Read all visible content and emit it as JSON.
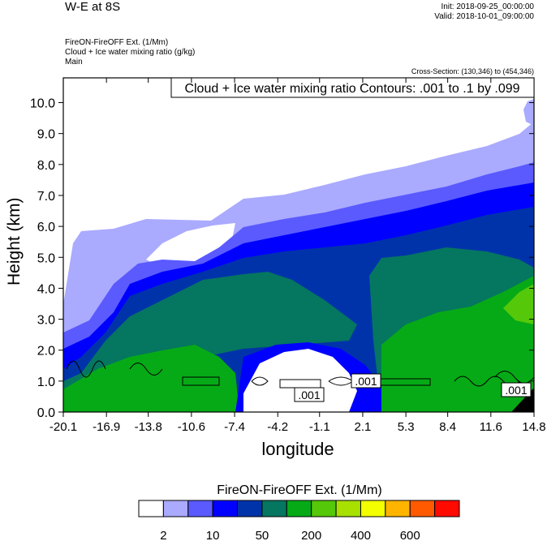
{
  "header": {
    "title": "W-E at 8S",
    "init": "Init: 2018-09-25_00:00:00",
    "valid": "Valid: 2018-10-01_09:00:00",
    "subtitles": [
      "FireON-FireOFF Ext.   (1/Mm)",
      "Cloud + Ice water mixing ratio   (g/kg)",
      "Main"
    ],
    "cross_section": "Cross-Section: (130,346) to (454,346)"
  },
  "chart_data": {
    "type": "contour",
    "xlabel": "longitude",
    "ylabel": "Height (km)",
    "xlim": [
      -20.1,
      14.8
    ],
    "ylim": [
      0,
      10.8
    ],
    "xticks": [
      "-20.1",
      "-16.9",
      "-13.8",
      "-10.6",
      "-7.4",
      "-4.2",
      "-1.1",
      "2.1",
      "5.3",
      "8.4",
      "11.6",
      "14.8"
    ],
    "yticks": [
      "0.0",
      "1.0",
      "2.0",
      "3.0",
      "4.0",
      "5.0",
      "6.0",
      "7.0",
      "8.0",
      "9.0",
      "10.0"
    ],
    "contour_info": "Cloud + Ice water mixing ratio Contours: .001 to .1 by .099",
    "contour_labels": [
      ".001",
      ".001",
      ".001"
    ],
    "colorbar": {
      "title": "FireON-FireOFF Ext.  (1/Mm)",
      "colors": [
        "#ffffff",
        "#aaaaff",
        "#5a5aff",
        "#0000ff",
        "#0033aa",
        "#057660",
        "#06aa16",
        "#55c80a",
        "#a8e000",
        "#f4ff00",
        "#ffb400",
        "#ff5a00",
        "#ff0a00"
      ],
      "labels": [
        "2",
        "10",
        "50",
        "200",
        "400",
        "600"
      ]
    }
  }
}
